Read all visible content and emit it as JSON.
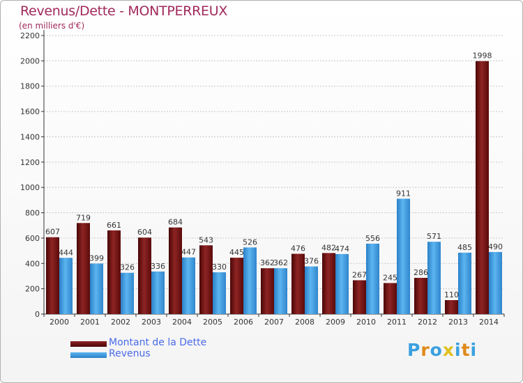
{
  "title": "Revenus/Dette - MONTPERREUX",
  "subtitle": "(en milliers d'€)",
  "colors": {
    "dette": "#7a1414",
    "revenus": "#3a9ae0",
    "title": "#a0285a",
    "legend_text": "#4a6ae8"
  },
  "logo": {
    "letters": [
      "P",
      "r",
      "o",
      "x",
      "i",
      "t",
      "i"
    ],
    "colors": [
      "#3aa0e0",
      "#e08a1a",
      "#3aa0e0",
      "#e0c020",
      "#3aa0e0",
      "#e08a1a",
      "#3aa0e0"
    ]
  },
  "chart_data": {
    "type": "bar",
    "title": "Revenus/Dette - MONTPERREUX",
    "ylabel": "(en milliers d'€)",
    "xlabel": "",
    "ylim": [
      0,
      2200
    ],
    "yticks": [
      0,
      200,
      400,
      600,
      800,
      1000,
      1200,
      1400,
      1600,
      1800,
      2000,
      2200
    ],
    "grid": true,
    "legend_position": "bottom-left",
    "categories": [
      "2000",
      "2001",
      "2002",
      "2003",
      "2004",
      "2005",
      "2006",
      "2007",
      "2008",
      "2009",
      "2010",
      "2011",
      "2012",
      "2013",
      "2014"
    ],
    "series": [
      {
        "name": "Montant de la Dette",
        "values": [
          607,
          719,
          661,
          604,
          684,
          543,
          445,
          362,
          476,
          482,
          267,
          245,
          286,
          110,
          1998
        ]
      },
      {
        "name": "Revenus",
        "values": [
          444,
          399,
          326,
          336,
          447,
          330,
          526,
          362,
          376,
          474,
          556,
          911,
          571,
          485,
          490
        ]
      }
    ]
  }
}
